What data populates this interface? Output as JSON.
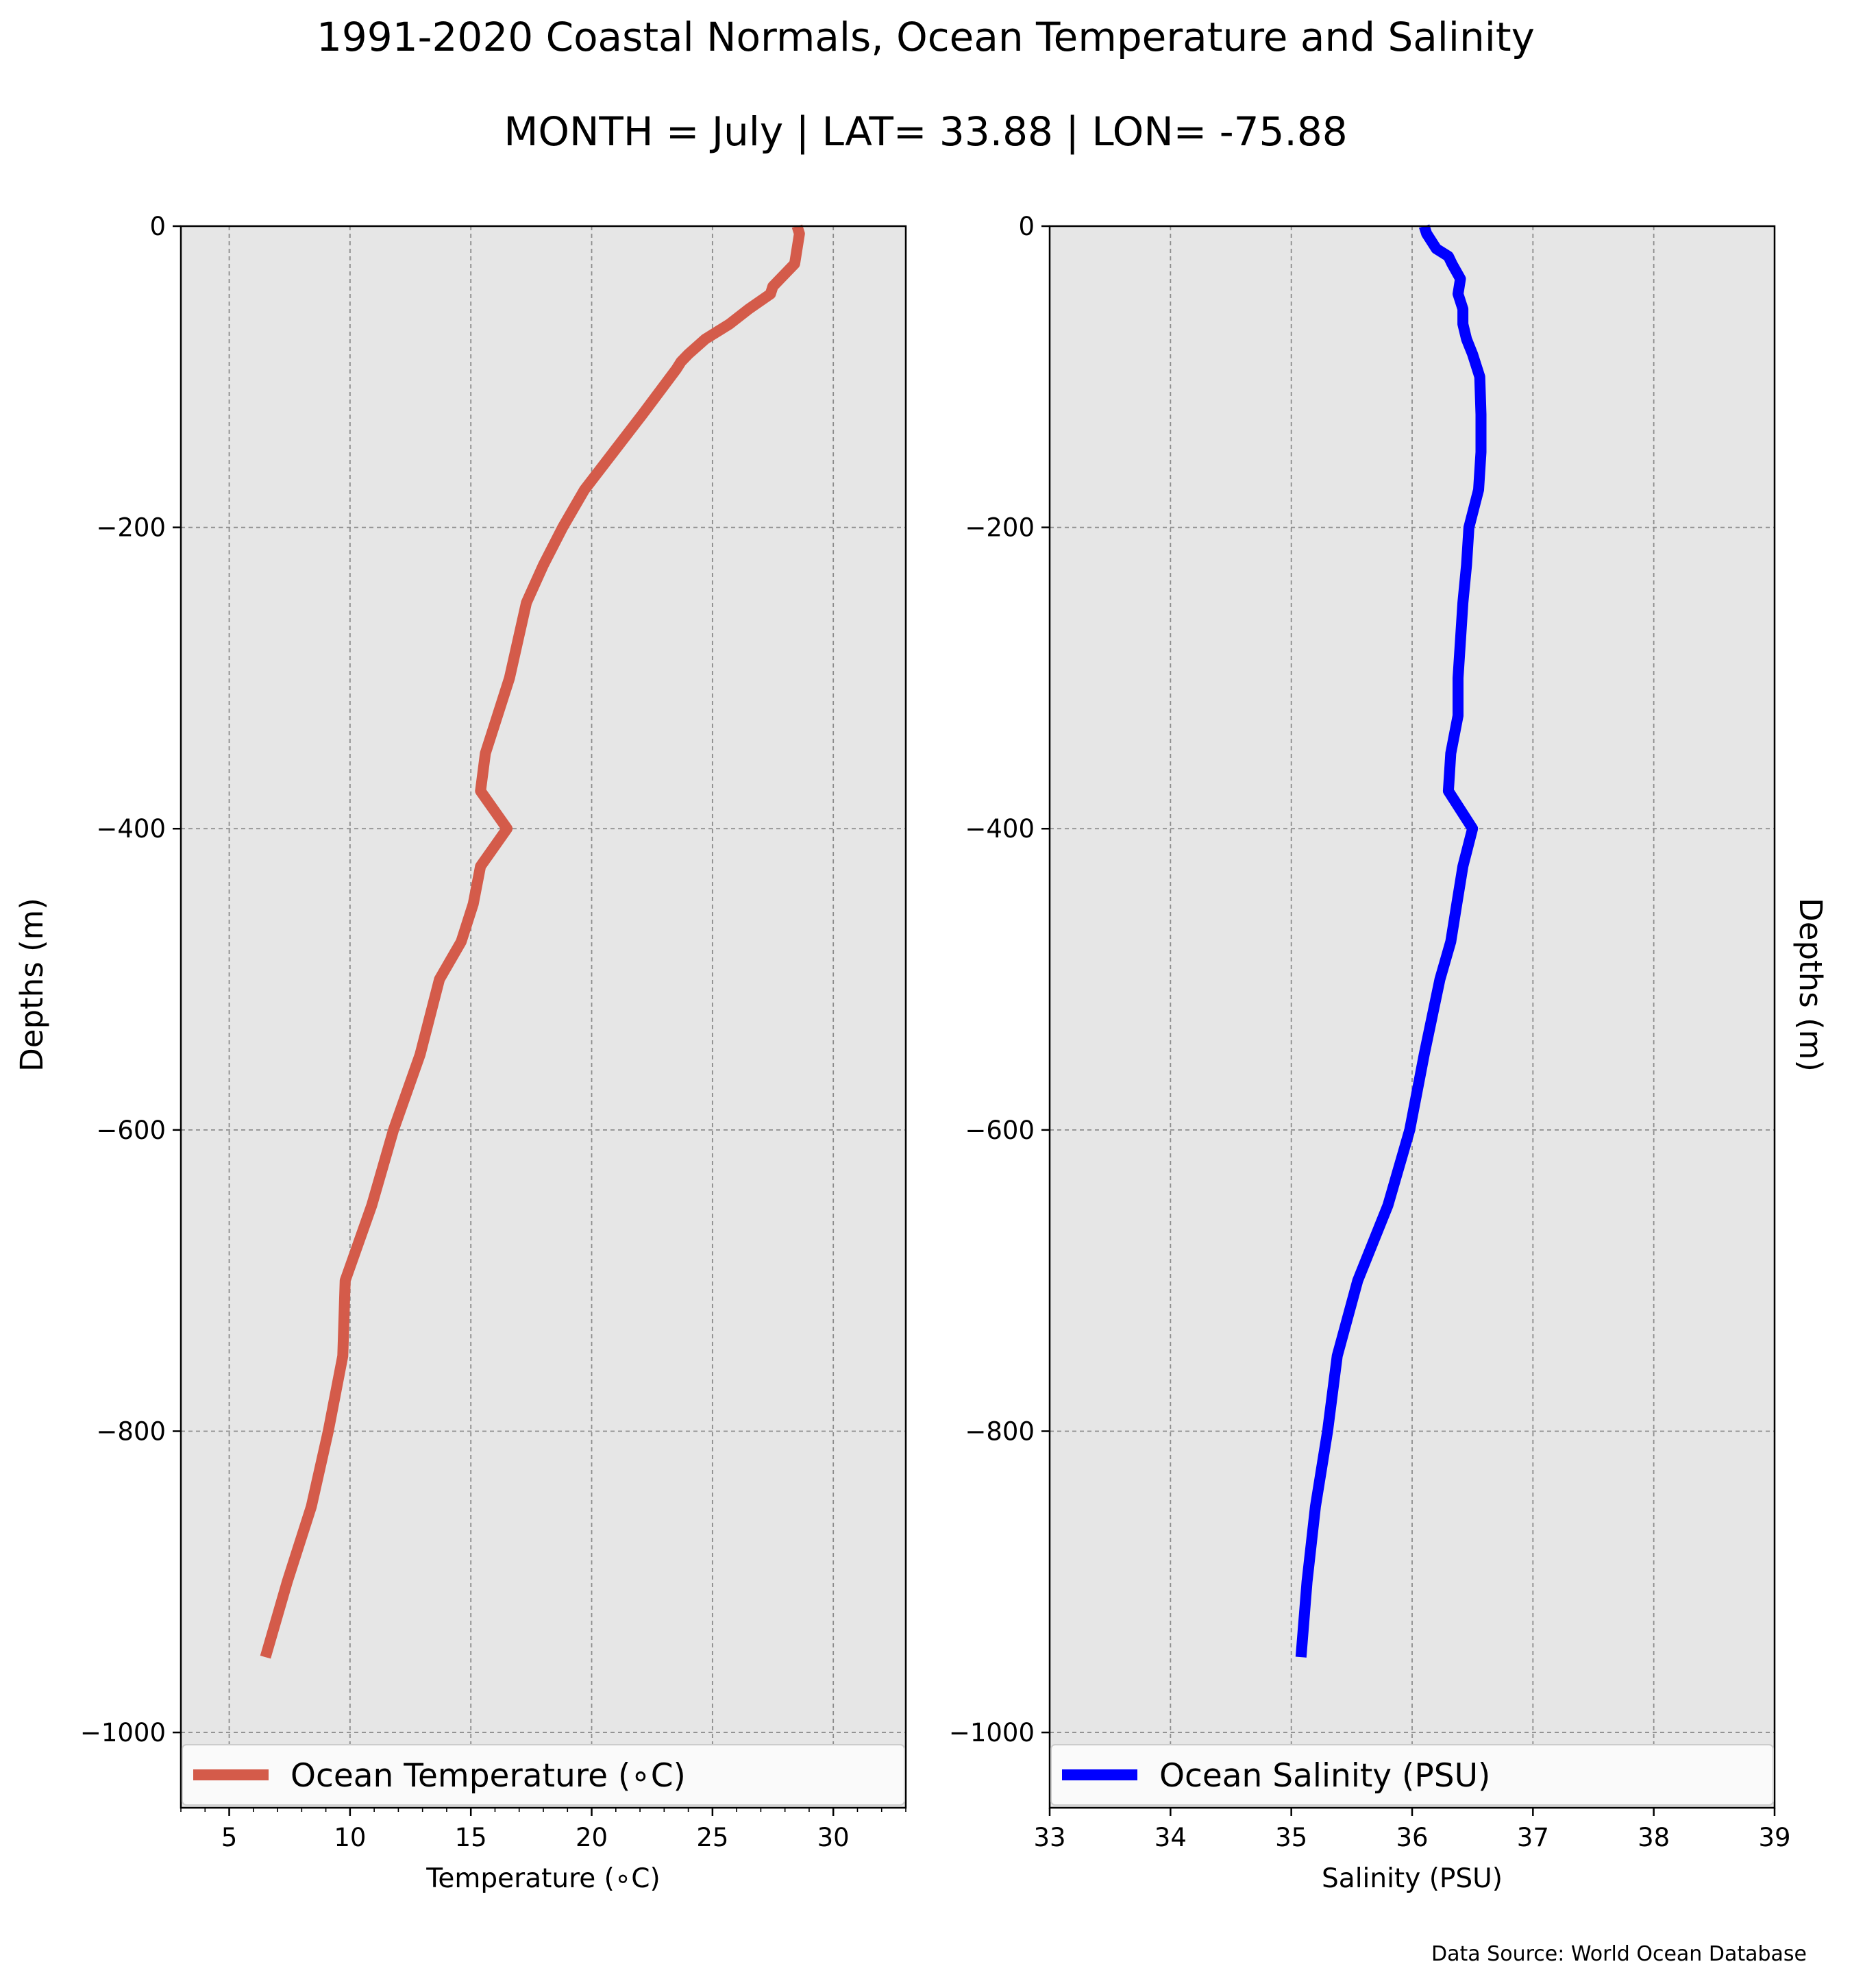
{
  "figure": {
    "title": "1991-2020 Coastal Normals, Ocean Temperature and Salinity",
    "subtitle": "MONTH = July | LAT= 33.88 | LON= -75.88",
    "source": "Data Source: World Ocean Database",
    "left_ylabel": "Depths (m)",
    "right_ylabel": "Depths (m)"
  },
  "chart_data": [
    {
      "type": "line",
      "xlabel": "Temperature (∘C)",
      "ylabel": "Depths (m)",
      "xlim": [
        3,
        33
      ],
      "ylim": [
        -1050,
        0
      ],
      "xticks": [
        5,
        10,
        15,
        20,
        25,
        30
      ],
      "yticks": [
        0,
        -200,
        -400,
        -600,
        -800,
        -1000
      ],
      "ytick_labels": [
        "0",
        "−200",
        "−400",
        "−600",
        "−800",
        "−1000"
      ],
      "grid": true,
      "legend": "lower-center",
      "color": "#d45b4a",
      "series": [
        {
          "name": "Ocean Temperature (∘C)",
          "x": [
            28.5,
            28.6,
            28.4,
            27.5,
            27.4,
            26.5,
            25.7,
            25.2,
            24.7,
            24.0,
            23.7,
            23.5,
            22.1,
            20.9,
            19.7,
            18.8,
            18.0,
            17.3,
            16.6,
            16.1,
            15.6,
            15.4,
            16.5,
            15.4,
            15.1,
            14.6,
            13.7,
            12.9,
            11.8,
            10.9,
            9.8,
            9.7,
            9.1,
            8.4,
            7.4,
            6.5
          ],
          "y": [
            0,
            -5,
            -25,
            -40,
            -45,
            -55,
            -65,
            -70,
            -75,
            -85,
            -90,
            -95,
            -125,
            -150,
            -175,
            -200,
            -225,
            -250,
            -300,
            -325,
            -350,
            -375,
            -400,
            -425,
            -450,
            -475,
            -500,
            -550,
            -600,
            -650,
            -700,
            -750,
            -800,
            -850,
            -900,
            -950
          ]
        }
      ]
    },
    {
      "type": "line",
      "xlabel": "Salinity (PSU)",
      "ylabel": "Depths (m)",
      "xlim": [
        33,
        39
      ],
      "ylim": [
        -1050,
        0
      ],
      "xticks": [
        33,
        34,
        35,
        36,
        37,
        38,
        39
      ],
      "yticks": [
        0,
        -200,
        -400,
        -600,
        -800,
        -1000
      ],
      "ytick_labels": [
        "0",
        "−200",
        "−400",
        "−600",
        "−800",
        "−1000"
      ],
      "grid": true,
      "legend": "lower-center",
      "color": "#0000ff",
      "series": [
        {
          "name": "Ocean Salinity (PSU)",
          "x": [
            36.1,
            36.12,
            36.2,
            36.3,
            36.33,
            36.4,
            36.38,
            36.42,
            36.42,
            36.45,
            36.5,
            36.56,
            36.57,
            36.57,
            36.55,
            36.47,
            36.45,
            36.42,
            36.38,
            36.38,
            36.32,
            36.3,
            36.5,
            36.42,
            36.37,
            36.32,
            36.23,
            36.1,
            35.98,
            35.8,
            35.55,
            35.38,
            35.3,
            35.2,
            35.13,
            35.08
          ],
          "y": [
            0,
            -5,
            -15,
            -20,
            -25,
            -35,
            -45,
            -55,
            -65,
            -75,
            -85,
            -100,
            -125,
            -150,
            -175,
            -200,
            -225,
            -250,
            -300,
            -325,
            -350,
            -375,
            -400,
            -425,
            -450,
            -475,
            -500,
            -550,
            -600,
            -650,
            -700,
            -750,
            -800,
            -850,
            -900,
            -950
          ]
        }
      ]
    }
  ]
}
